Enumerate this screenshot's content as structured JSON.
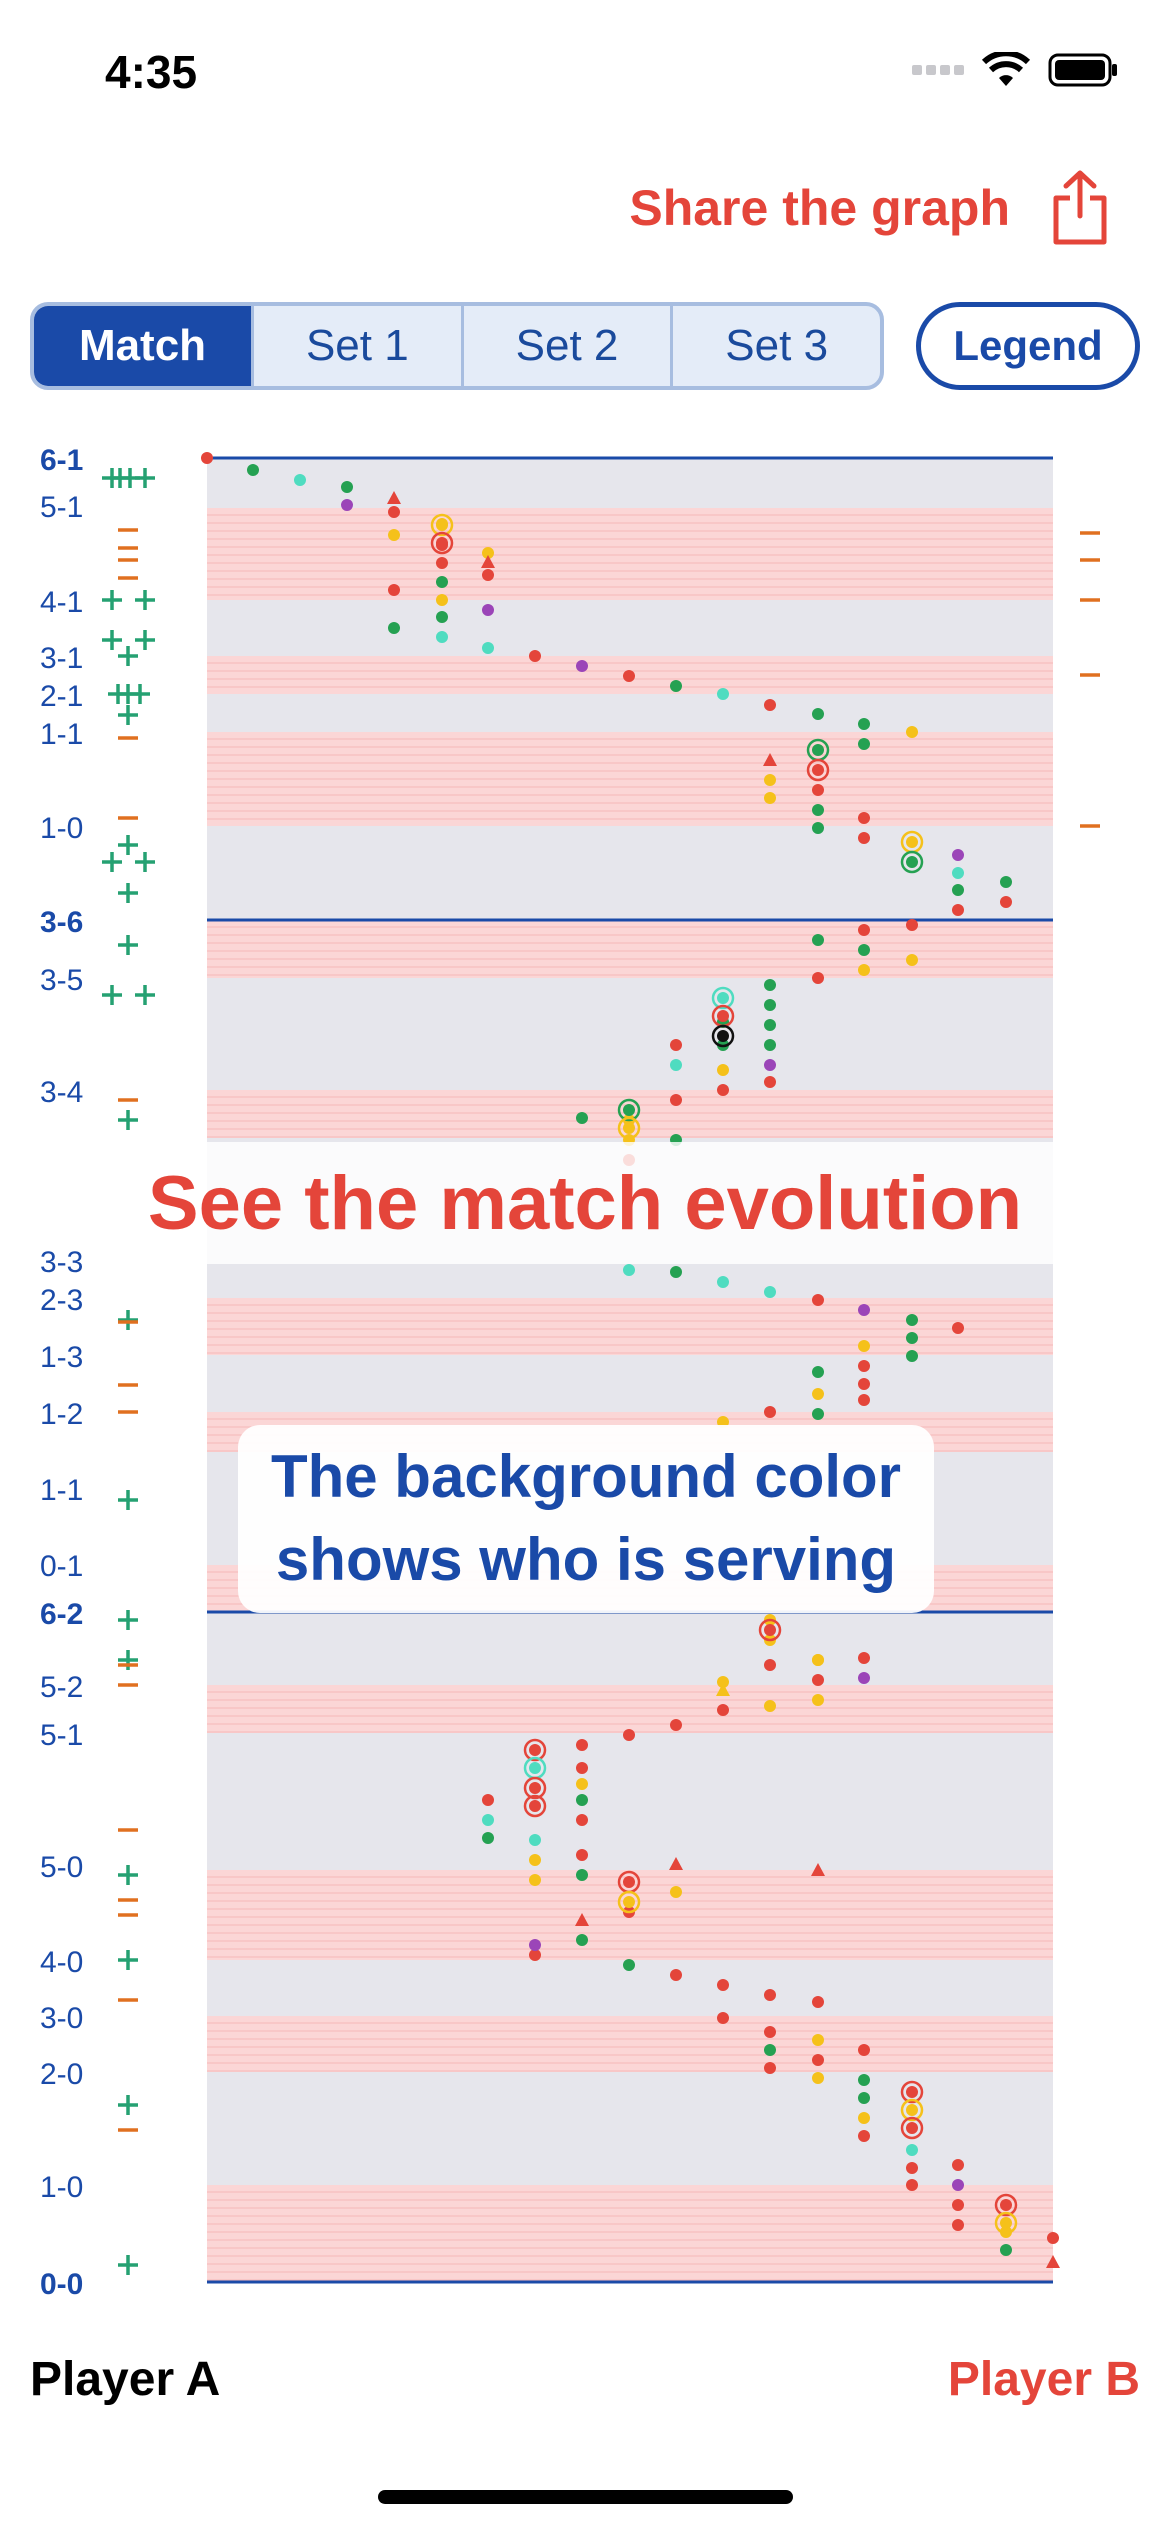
{
  "status": {
    "time": "4:35"
  },
  "header": {
    "share_label": "Share the graph"
  },
  "tabs": [
    {
      "label": "Match",
      "active": true
    },
    {
      "label": "Set 1",
      "active": false
    },
    {
      "label": "Set 2",
      "active": false
    },
    {
      "label": "Set 3",
      "active": false
    }
  ],
  "legend_label": "Legend",
  "overlay": {
    "title": "See the match evolution",
    "caption_line1": "The background color",
    "caption_line2": "shows who is serving"
  },
  "players": {
    "a": "Player A",
    "b": "Player B"
  },
  "colors": {
    "accent": "#e4453a",
    "brand": "#1a4aa8",
    "plus": "#25a172",
    "minus": "#e07020"
  },
  "chart_data": {
    "type": "scatter",
    "score_labels": [
      {
        "label": "6-1",
        "bold": true
      },
      {
        "label": "5-1"
      },
      {
        "label": "4-1"
      },
      {
        "label": "3-1"
      },
      {
        "label": "2-1"
      },
      {
        "label": "1-1"
      },
      {
        "label": "1-0"
      },
      {
        "label": "3-6",
        "bold": true
      },
      {
        "label": "3-5"
      },
      {
        "label": "3-4"
      },
      {
        "label": "3-3"
      },
      {
        "label": "2-3"
      },
      {
        "label": "1-3"
      },
      {
        "label": "1-2"
      },
      {
        "label": "1-1"
      },
      {
        "label": "0-1"
      },
      {
        "label": "6-2",
        "bold": true
      },
      {
        "label": "5-2"
      },
      {
        "label": "5-1"
      },
      {
        "label": "5-0"
      },
      {
        "label": "4-0"
      },
      {
        "label": "3-0"
      },
      {
        "label": "2-0"
      },
      {
        "label": "1-0"
      },
      {
        "label": "0-0",
        "bold": true
      }
    ],
    "set_lines": [
      "6-1",
      "3-6",
      "6-2",
      "0-0"
    ]
  }
}
